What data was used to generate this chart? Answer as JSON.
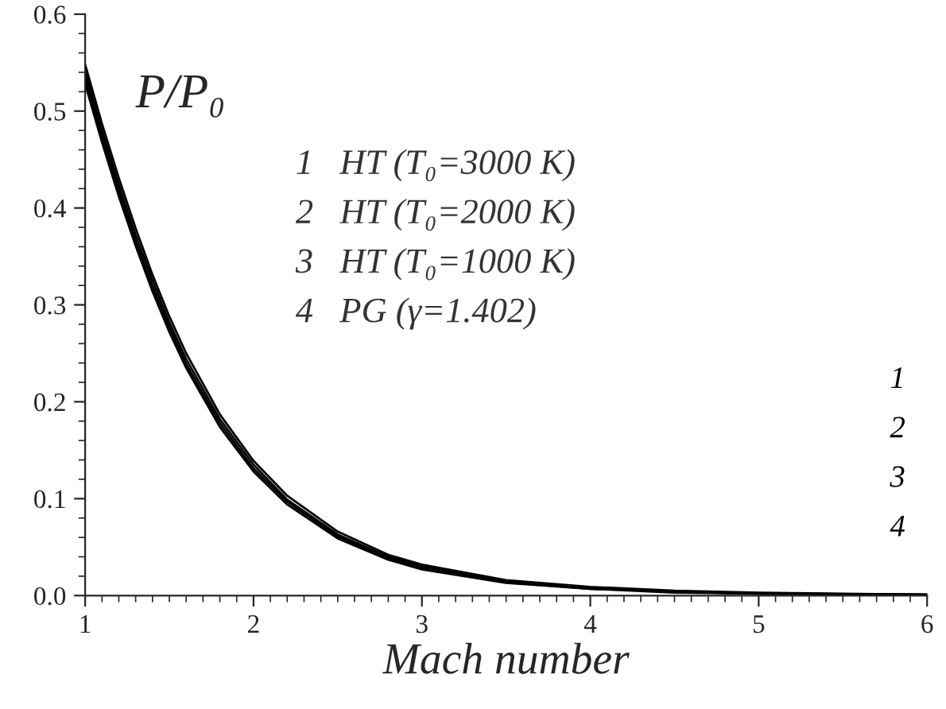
{
  "chart_data": {
    "type": "line",
    "xlabel": "Mach number",
    "ylabel": "P/P₀",
    "x": [
      1,
      1.1,
      1.2,
      1.3,
      1.4,
      1.5,
      1.6,
      1.8,
      2,
      2.2,
      2.5,
      2.8,
      3,
      3.5,
      4,
      4.5,
      5,
      6
    ],
    "series": [
      {
        "color": "#000000",
        "values": [
          0.548,
          0.487,
          0.431,
          0.379,
          0.331,
          0.288,
          0.25,
          0.187,
          0.139,
          0.103,
          0.066,
          0.042,
          0.032,
          0.016,
          0.009,
          0.005,
          0.003,
          0.001
        ]
      },
      {
        "color": "#000000",
        "values": [
          0.541,
          0.48,
          0.424,
          0.372,
          0.325,
          0.282,
          0.244,
          0.182,
          0.135,
          0.099,
          0.063,
          0.04,
          0.03,
          0.015,
          0.008,
          0.004,
          0.002,
          0.001
        ]
      },
      {
        "color": "#000000",
        "values": [
          0.535,
          0.474,
          0.418,
          0.366,
          0.319,
          0.277,
          0.239,
          0.178,
          0.131,
          0.097,
          0.061,
          0.038,
          0.028,
          0.014,
          0.007,
          0.004,
          0.002,
          0.001
        ]
      },
      {
        "color": "#000000",
        "values": [
          0.528,
          0.468,
          0.412,
          0.361,
          0.314,
          0.272,
          0.235,
          0.174,
          0.128,
          0.094,
          0.059,
          0.037,
          0.027,
          0.013,
          0.007,
          0.003,
          0.002,
          0.001
        ]
      }
    ],
    "annotations": [
      "1   HT (T₀=3000 K)",
      "2   HT (T₀=2000 K)",
      "3   HT (T₀=1000 K)",
      "4   PG (γ=1.402)",
      "1",
      "2",
      "3",
      "4"
    ],
    "xlim": [
      1,
      6
    ],
    "xticks": [
      1,
      2,
      3,
      4,
      5,
      6
    ],
    "ylim": [
      0,
      0.6
    ],
    "yticks": [
      {
        "value": 0,
        "label": "0.0"
      },
      0.1,
      0.2,
      0.3,
      0.4,
      0.5,
      0.6
    ],
    "grid": false,
    "legend": false,
    "marker": "none",
    "line_style": "solid"
  }
}
